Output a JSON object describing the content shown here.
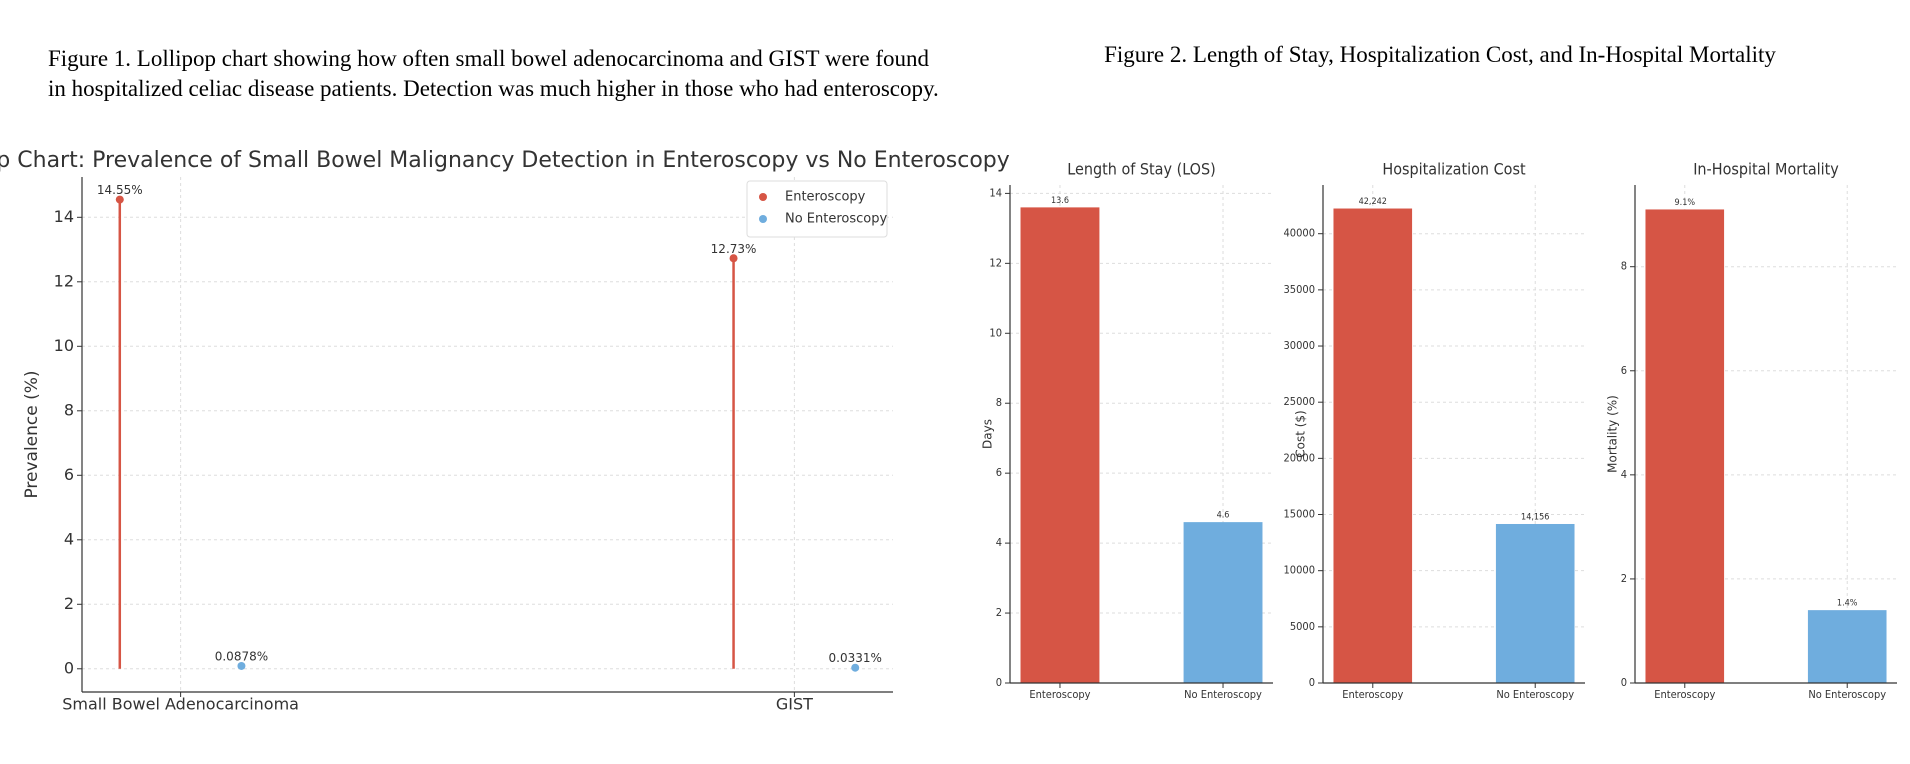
{
  "captions": [
    "Figure 1. Lollipop chart showing how often small bowel adenocarcinoma and GIST were found in hospitalized celiac disease patients. Detection was much higher in those who had enteroscopy.",
    "Figure 2. Length of Stay, Hospitalization Cost, and In-Hospital Mortality"
  ],
  "chart_data": [
    {
      "type": "lollipop",
      "title": "Lollipop Chart: Prevalence of Small Bowel Malignancy Detection in Enteroscopy vs No Enteroscopy",
      "ylabel": "Prevalence (%)",
      "categories": [
        "Small Bowel Adenocarcinoma",
        "GIST"
      ],
      "series": [
        {
          "name": "Enteroscopy",
          "color": "#d65545",
          "values": [
            14.55,
            12.73
          ],
          "value_labels": [
            "14.55%",
            "12.73%"
          ]
        },
        {
          "name": "No Enteroscopy",
          "color": "#6fadde",
          "values": [
            0.0878,
            0.0331
          ],
          "value_labels": [
            "0.0878%",
            "0.0331%"
          ]
        }
      ],
      "ylim": [
        -0.72,
        15.25
      ],
      "yticks": [
        0,
        2,
        4,
        6,
        8,
        10,
        12,
        14
      ],
      "grid": true,
      "legend": "upper right"
    },
    {
      "type": "bar",
      "title": "Length of Stay (LOS)",
      "ylabel": "Days",
      "categories": [
        "Enteroscopy",
        "No Enteroscopy"
      ],
      "values": [
        13.6,
        4.6
      ],
      "colors": [
        "#d65545",
        "#6fadde"
      ],
      "ylim": [
        0,
        14.24
      ],
      "yticks": [
        0,
        2,
        4,
        6,
        8,
        10,
        12,
        14
      ],
      "grid": true
    },
    {
      "type": "bar",
      "title": "Hospitalization Cost",
      "ylabel": "Cost ($)",
      "categories": [
        "Enteroscopy",
        "No Enteroscopy"
      ],
      "values": [
        42242,
        14156
      ],
      "value_labels": [
        "42,242",
        "14,156"
      ],
      "colors": [
        "#d65545",
        "#6fadde"
      ],
      "ylim": [
        0,
        44336
      ],
      "yticks": [
        0,
        5000,
        10000,
        15000,
        20000,
        25000,
        30000,
        35000,
        40000
      ],
      "grid": true
    },
    {
      "type": "bar",
      "title": "In-Hospital Mortality",
      "ylabel": "Mortality (%)",
      "categories": [
        "Enteroscopy",
        "No Enteroscopy"
      ],
      "values": [
        9.1,
        1.4
      ],
      "value_labels": [
        "9.1%",
        "1.4%"
      ],
      "colors": [
        "#d65545",
        "#6fadde"
      ],
      "ylim": [
        0,
        9.57
      ],
      "yticks": [
        0,
        2,
        4,
        6,
        8
      ],
      "grid": true
    }
  ]
}
